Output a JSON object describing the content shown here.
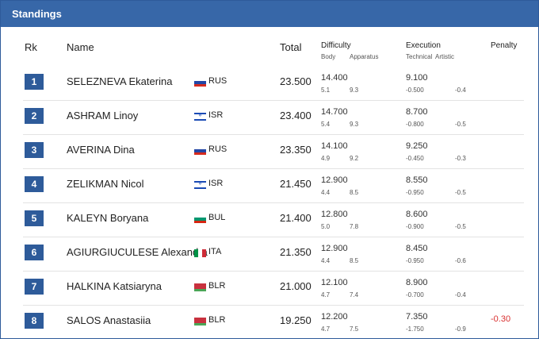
{
  "header": {
    "title": "Standings"
  },
  "columns": {
    "rank": "Rk",
    "name": "Name",
    "total": "Total",
    "difficulty": "Difficulty",
    "body": "Body",
    "apparatus": "Apparatus",
    "execution": "Execution",
    "technical": "Technical",
    "artistic": "Artistic",
    "penalty": "Penalty"
  },
  "rows": [
    {
      "rank": "1",
      "name": "SELEZNEVA Ekaterina",
      "flag": "RUS",
      "country": "RUS",
      "total": "23.500",
      "difficulty": "14.400",
      "body": "5.1",
      "apparatus": "9.3",
      "execution": "9.100",
      "technical": "-0.500",
      "artistic": "-0.4",
      "penalty": ""
    },
    {
      "rank": "2",
      "name": "ASHRAM Linoy",
      "flag": "ISR",
      "country": "ISR",
      "total": "23.400",
      "difficulty": "14.700",
      "body": "5.4",
      "apparatus": "9.3",
      "execution": "8.700",
      "technical": "-0.800",
      "artistic": "-0.5",
      "penalty": ""
    },
    {
      "rank": "3",
      "name": "AVERINA Dina",
      "flag": "RUS",
      "country": "RUS",
      "total": "23.350",
      "difficulty": "14.100",
      "body": "4.9",
      "apparatus": "9.2",
      "execution": "9.250",
      "technical": "-0.450",
      "artistic": "-0.3",
      "penalty": ""
    },
    {
      "rank": "4",
      "name": "ZELIKMAN Nicol",
      "flag": "ISR",
      "country": "ISR",
      "total": "21.450",
      "difficulty": "12.900",
      "body": "4.4",
      "apparatus": "8.5",
      "execution": "8.550",
      "technical": "-0.950",
      "artistic": "-0.5",
      "penalty": ""
    },
    {
      "rank": "5",
      "name": "KALEYN Boryana",
      "flag": "BUL",
      "country": "BUL",
      "total": "21.400",
      "difficulty": "12.800",
      "body": "5.0",
      "apparatus": "7.8",
      "execution": "8.600",
      "technical": "-0.900",
      "artistic": "-0.5",
      "penalty": ""
    },
    {
      "rank": "6",
      "name": "AGIURGIUCULESE Alexandra",
      "flag": "ITA",
      "country": "ITA",
      "total": "21.350",
      "difficulty": "12.900",
      "body": "4.4",
      "apparatus": "8.5",
      "execution": "8.450",
      "technical": "-0.950",
      "artistic": "-0.6",
      "penalty": ""
    },
    {
      "rank": "7",
      "name": "HALKINA Katsiaryna",
      "flag": "BLR",
      "country": "BLR",
      "total": "21.000",
      "difficulty": "12.100",
      "body": "4.7",
      "apparatus": "7.4",
      "execution": "8.900",
      "technical": "-0.700",
      "artistic": "-0.4",
      "penalty": ""
    },
    {
      "rank": "8",
      "name": "SALOS Anastasiia",
      "flag": "BLR",
      "country": "BLR",
      "total": "19.250",
      "difficulty": "12.200",
      "body": "4.7",
      "apparatus": "7.5",
      "execution": "7.350",
      "technical": "-1.750",
      "artistic": "-0.9",
      "penalty": "-0.30"
    }
  ]
}
